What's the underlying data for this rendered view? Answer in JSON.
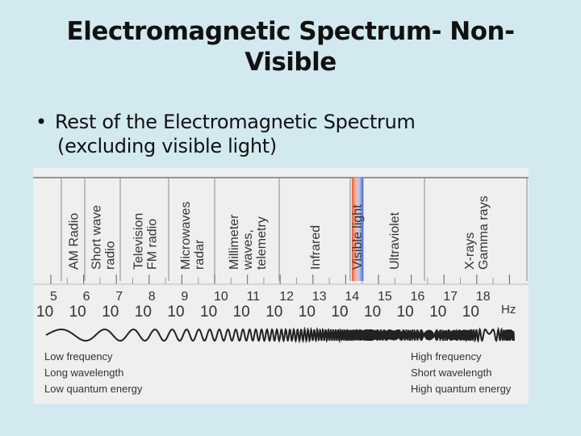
{
  "slide": {
    "title_line1": "Electromagnetic Spectrum- Non-",
    "title_line2": "Visible",
    "bullet_line1": "Rest of the Electromagnetic Spectrum",
    "bullet_line2": "(excluding visible light)"
  },
  "spectrum": {
    "bands": [
      {
        "label": "AM Radio",
        "lines": [
          "AM Radio"
        ]
      },
      {
        "label": "Short wave radio",
        "lines": [
          "Short wave",
          "radio"
        ]
      },
      {
        "label": "Television FM radio",
        "lines": [
          "Television",
          "FM radio"
        ]
      },
      {
        "label": "Microwaves radar",
        "lines": [
          "Microwaves",
          "radar"
        ]
      },
      {
        "label": "Millimeter waves, telemetry",
        "lines": [
          "Millimeter",
          "waves,",
          "telemetry"
        ]
      },
      {
        "label": "Infrared",
        "lines": [
          "Infrared"
        ]
      },
      {
        "label": "Visible light",
        "lines": [
          "Visible light"
        ]
      },
      {
        "label": "Ultraviolet",
        "lines": [
          "Ultraviolet"
        ]
      },
      {
        "label": "X-rays Gamma rays",
        "lines": [
          "X-rays",
          "Gamma rays"
        ]
      }
    ],
    "exponents": [
      "5",
      "6",
      "7",
      "8",
      "9",
      "10",
      "11",
      "12",
      "13",
      "14",
      "15",
      "16",
      "17",
      "18"
    ],
    "base": "10",
    "unit": "Hz",
    "low_end": [
      "Low frequency",
      "Long wavelength",
      "Low quantum energy"
    ],
    "high_end": [
      "High frequency",
      "Short wavelength",
      "High quantum energy"
    ]
  }
}
